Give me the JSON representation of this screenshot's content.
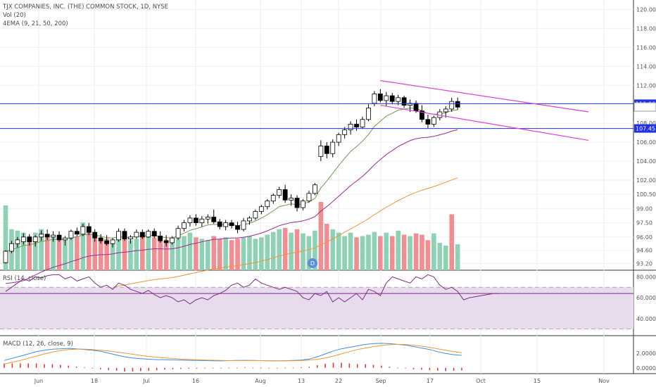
{
  "header": {
    "title": "TJX COMPANIES, INC. (THE) COMMON STOCK, 1D, NYSE",
    "vol_label": "Vol (20)",
    "ema_label": "4EMA (9, 21, 50, 200)"
  },
  "rsi_label": "RSI (14, close)",
  "macd_label": "MACD (12, 26, close, 9)",
  "event_marker": "D",
  "colors": {
    "up_candle": "#ffffff",
    "down_candle": "#000000",
    "vol_up": "#8fd1b5",
    "vol_down": "#ef8f93",
    "ema9": "#6e9a54",
    "ema21": "#9c2b8f",
    "ema50": "#f2952f",
    "hline": "#1e30e8",
    "channel": "#e040d0",
    "rsi": "#7b2d84",
    "macd": "#3a8ee6",
    "signal": "#f2952f",
    "hist": "#e23b3b"
  },
  "chart_data": [
    {
      "type": "candlestick",
      "title": "TJX COMPANIES, INC. (THE) COMMON STOCK, 1D, NYSE",
      "y_ticks": [
        "120.00",
        "118.00",
        "116.00",
        "114.00",
        "112.00",
        "110.06",
        "109.72",
        "108.00",
        "107.45",
        "106.00",
        "104.00",
        "102.00",
        "100.50",
        "99.00",
        "97.50",
        "96.00",
        "94.60",
        "93.20"
      ],
      "x_ticks": [
        "Jun",
        "18",
        "Jul",
        "16",
        "Aug",
        "13",
        "22",
        "Sep",
        "17",
        "Oct",
        "15",
        "Nov"
      ],
      "ylim": [
        92.5,
        121.0
      ],
      "horizontal_lines": [
        110.06,
        107.45
      ],
      "last_price": 109.72,
      "channel": {
        "upper": [
          [
            63,
            112.5
          ],
          [
            98,
            109.2
          ]
        ],
        "lower": [
          [
            63,
            109.9
          ],
          [
            98,
            106.2
          ]
        ]
      },
      "ohlc": [
        [
          93.3,
          94.6,
          93.2,
          94.5
        ],
        [
          94.5,
          95.6,
          94.3,
          95.3
        ],
        [
          95.3,
          96.0,
          94.9,
          95.7
        ],
        [
          95.5,
          96.4,
          95.2,
          96.0
        ],
        [
          96.0,
          96.3,
          95.1,
          95.5
        ],
        [
          95.5,
          96.2,
          95.0,
          96.0
        ],
        [
          96.0,
          96.7,
          95.6,
          96.3
        ],
        [
          96.3,
          96.8,
          95.7,
          96.0
        ],
        [
          96.0,
          96.6,
          95.5,
          96.2
        ],
        [
          96.2,
          96.6,
          95.5,
          95.7
        ],
        [
          95.7,
          96.1,
          95.1,
          95.9
        ],
        [
          95.9,
          96.8,
          95.7,
          96.6
        ],
        [
          96.6,
          97.0,
          96.1,
          96.3
        ],
        [
          96.3,
          97.4,
          96.1,
          97.1
        ],
        [
          97.1,
          97.5,
          96.2,
          96.5
        ],
        [
          96.5,
          96.8,
          95.5,
          95.9
        ],
        [
          95.9,
          96.3,
          95.3,
          95.6
        ],
        [
          95.6,
          96.2,
          95.1,
          95.3
        ],
        [
          95.3,
          95.9,
          94.9,
          95.7
        ],
        [
          95.7,
          96.9,
          95.5,
          96.6
        ],
        [
          96.6,
          96.9,
          95.6,
          95.8
        ],
        [
          95.8,
          96.2,
          95.3,
          96.0
        ],
        [
          96.0,
          96.8,
          95.8,
          96.5
        ],
        [
          96.5,
          96.8,
          95.8,
          96.0
        ],
        [
          96.0,
          96.8,
          95.9,
          96.6
        ],
        [
          96.6,
          96.9,
          95.9,
          96.1
        ],
        [
          96.1,
          96.6,
          95.4,
          95.6
        ],
        [
          95.6,
          96.2,
          95.0,
          95.4
        ],
        [
          95.4,
          96.1,
          95.2,
          95.9
        ],
        [
          95.9,
          97.2,
          95.7,
          96.9
        ],
        [
          96.9,
          97.8,
          96.6,
          97.5
        ],
        [
          97.5,
          98.3,
          97.1,
          98.0
        ],
        [
          98.0,
          98.4,
          97.2,
          97.5
        ],
        [
          97.5,
          98.2,
          97.1,
          97.9
        ],
        [
          97.9,
          98.4,
          97.4,
          98.1
        ],
        [
          98.1,
          98.9,
          97.4,
          97.6
        ],
        [
          97.6,
          97.9,
          96.8,
          97.1
        ],
        [
          97.1,
          97.8,
          96.7,
          97.5
        ],
        [
          97.5,
          97.8,
          96.9,
          97.2
        ],
        [
          97.2,
          97.6,
          96.4,
          96.8
        ],
        [
          96.8,
          98.0,
          96.6,
          97.7
        ],
        [
          97.7,
          98.2,
          97.3,
          98.0
        ],
        [
          98.0,
          98.9,
          97.8,
          98.7
        ],
        [
          98.7,
          99.4,
          98.4,
          99.2
        ],
        [
          99.2,
          100.0,
          98.9,
          99.8
        ],
        [
          99.8,
          100.6,
          99.5,
          100.4
        ],
        [
          100.4,
          101.3,
          100.1,
          101.0
        ],
        [
          101.0,
          101.5,
          99.6,
          99.9
        ],
        [
          99.9,
          100.5,
          99.3,
          100.1
        ],
        [
          100.1,
          100.4,
          98.7,
          99.1
        ],
        [
          99.1,
          100.0,
          98.8,
          99.8
        ],
        [
          99.8,
          100.9,
          99.6,
          100.6
        ],
        [
          100.6,
          101.7,
          100.4,
          101.5
        ],
        [
          104.5,
          106.2,
          104.0,
          105.6
        ],
        [
          105.6,
          106.0,
          104.3,
          104.8
        ],
        [
          104.8,
          106.3,
          104.4,
          106.0
        ],
        [
          106.0,
          107.0,
          105.6,
          106.8
        ],
        [
          106.8,
          107.6,
          106.4,
          107.3
        ],
        [
          107.3,
          108.2,
          106.8,
          107.9
        ],
        [
          107.9,
          108.4,
          107.2,
          107.6
        ],
        [
          107.6,
          108.7,
          107.4,
          108.4
        ],
        [
          108.4,
          110.0,
          108.2,
          109.6
        ],
        [
          110.1,
          111.4,
          109.8,
          111.1
        ],
        [
          111.1,
          111.6,
          110.2,
          110.4
        ],
        [
          110.4,
          111.3,
          109.8,
          110.9
        ],
        [
          110.9,
          111.2,
          110.0,
          110.3
        ],
        [
          110.3,
          111.0,
          109.9,
          110.7
        ],
        [
          110.7,
          110.9,
          109.6,
          109.9
        ],
        [
          109.9,
          110.5,
          109.2,
          110.1
        ],
        [
          110.1,
          110.4,
          109.1,
          109.3
        ],
        [
          109.3,
          109.9,
          108.1,
          108.4
        ],
        [
          108.4,
          108.9,
          107.5,
          107.9
        ],
        [
          107.9,
          108.8,
          107.6,
          108.6
        ],
        [
          108.6,
          109.5,
          108.3,
          109.2
        ],
        [
          109.2,
          109.8,
          108.6,
          109.5
        ],
        [
          109.5,
          110.7,
          109.2,
          110.3
        ],
        [
          110.3,
          110.7,
          109.4,
          109.7
        ]
      ],
      "volume": [
        {
          "v": 0.95,
          "up": true
        },
        {
          "v": 0.6,
          "up": true
        },
        {
          "v": 0.58,
          "up": true
        },
        {
          "v": 0.55,
          "up": true
        },
        {
          "v": 0.5,
          "up": false
        },
        {
          "v": 0.55,
          "up": true
        },
        {
          "v": 0.6,
          "up": true
        },
        {
          "v": 0.52,
          "up": false
        },
        {
          "v": 0.5,
          "up": true
        },
        {
          "v": 0.48,
          "up": false
        },
        {
          "v": 0.46,
          "up": true
        },
        {
          "v": 0.55,
          "up": true
        },
        {
          "v": 0.5,
          "up": false
        },
        {
          "v": 0.7,
          "up": true
        },
        {
          "v": 0.6,
          "up": false
        },
        {
          "v": 0.55,
          "up": false
        },
        {
          "v": 0.48,
          "up": false
        },
        {
          "v": 0.46,
          "up": false
        },
        {
          "v": 0.45,
          "up": true
        },
        {
          "v": 0.52,
          "up": true
        },
        {
          "v": 0.48,
          "up": false
        },
        {
          "v": 0.44,
          "up": true
        },
        {
          "v": 0.46,
          "up": true
        },
        {
          "v": 0.5,
          "up": false
        },
        {
          "v": 0.52,
          "up": true
        },
        {
          "v": 0.48,
          "up": false
        },
        {
          "v": 0.5,
          "up": false
        },
        {
          "v": 0.45,
          "up": false
        },
        {
          "v": 0.42,
          "up": true
        },
        {
          "v": 0.46,
          "up": true
        },
        {
          "v": 0.5,
          "up": true
        },
        {
          "v": 0.55,
          "up": true
        },
        {
          "v": 0.48,
          "up": false
        },
        {
          "v": 0.46,
          "up": true
        },
        {
          "v": 0.44,
          "up": true
        },
        {
          "v": 0.5,
          "up": false
        },
        {
          "v": 0.46,
          "up": false
        },
        {
          "v": 0.48,
          "up": true
        },
        {
          "v": 0.44,
          "up": false
        },
        {
          "v": 0.46,
          "up": false
        },
        {
          "v": 0.48,
          "up": true
        },
        {
          "v": 0.5,
          "up": true
        },
        {
          "v": 0.46,
          "up": true
        },
        {
          "v": 0.48,
          "up": true
        },
        {
          "v": 0.52,
          "up": true
        },
        {
          "v": 0.56,
          "up": true
        },
        {
          "v": 0.6,
          "up": true
        },
        {
          "v": 0.62,
          "up": false
        },
        {
          "v": 0.55,
          "up": true
        },
        {
          "v": 0.6,
          "up": false
        },
        {
          "v": 0.54,
          "up": true
        },
        {
          "v": 0.5,
          "up": true
        },
        {
          "v": 0.58,
          "up": true
        },
        {
          "v": 1.0,
          "up": false
        },
        {
          "v": 0.68,
          "up": false
        },
        {
          "v": 0.6,
          "up": true
        },
        {
          "v": 0.55,
          "up": true
        },
        {
          "v": 0.5,
          "up": true
        },
        {
          "v": 0.55,
          "up": true
        },
        {
          "v": 0.48,
          "up": false
        },
        {
          "v": 0.5,
          "up": true
        },
        {
          "v": 0.52,
          "up": true
        },
        {
          "v": 0.56,
          "up": true
        },
        {
          "v": 0.5,
          "up": false
        },
        {
          "v": 0.55,
          "up": true
        },
        {
          "v": 0.5,
          "up": false
        },
        {
          "v": 0.58,
          "up": true
        },
        {
          "v": 0.52,
          "up": false
        },
        {
          "v": 0.5,
          "up": true
        },
        {
          "v": 0.54,
          "up": false
        },
        {
          "v": 0.52,
          "up": false
        },
        {
          "v": 0.44,
          "up": false
        },
        {
          "v": 0.54,
          "up": true
        },
        {
          "v": 0.4,
          "up": true
        },
        {
          "v": 0.36,
          "up": true
        },
        {
          "v": 0.82,
          "up": false
        },
        {
          "v": 0.38,
          "up": true
        }
      ]
    },
    {
      "type": "line",
      "title": "RSI (14, close)",
      "y_ticks": [
        "80.0000",
        "60.0000",
        "40.0000"
      ],
      "ylim": [
        25,
        85
      ],
      "band": [
        70,
        30
      ],
      "last_value": 64,
      "values": [
        66,
        70,
        74,
        78,
        76,
        80,
        79,
        81,
        82,
        82,
        78,
        80,
        76,
        78,
        80,
        74,
        70,
        72,
        68,
        74,
        72,
        68,
        66,
        64,
        67,
        63,
        60,
        62,
        60,
        56,
        58,
        54,
        58,
        60,
        58,
        62,
        64,
        67,
        72,
        74,
        70,
        72,
        78,
        74,
        72,
        70,
        68,
        70,
        68,
        66,
        60,
        58,
        64,
        62,
        66,
        56,
        60,
        56,
        60,
        64,
        58,
        68,
        66,
        62,
        74,
        80,
        78,
        76,
        74,
        80,
        78,
        82,
        80,
        72,
        68,
        70,
        66,
        58,
        60,
        61,
        62,
        63,
        64,
        64
      ]
    },
    {
      "type": "line",
      "title": "MACD (12, 26, close, 9)",
      "y_ticks": [
        "2.0000",
        "0.0000"
      ],
      "ylim": [
        -0.6,
        4.2
      ],
      "series": [
        {
          "name": "MACD",
          "values": [
            1.0,
            1.3,
            1.6,
            1.9,
            2.2,
            2.4,
            2.55,
            2.6,
            2.65,
            2.6,
            2.5,
            2.4,
            2.25,
            2.0,
            1.75,
            1.5,
            1.35,
            1.25,
            1.18,
            1.12,
            1.1,
            1.08,
            1.05,
            1.02,
            1.0,
            0.98,
            0.96,
            0.95,
            0.98,
            1.0,
            1.02,
            1.0,
            0.98,
            0.96,
            0.95,
            0.97,
            1.0,
            1.05,
            1.2,
            1.5,
            1.9,
            2.3,
            2.6,
            2.8,
            3.0,
            3.2,
            3.3,
            3.35,
            3.3,
            3.2,
            3.1,
            2.9,
            2.7,
            2.5,
            2.2,
            1.95,
            1.8,
            1.7
          ]
        },
        {
          "name": "Signal",
          "values": [
            0.5,
            0.75,
            1.0,
            1.3,
            1.6,
            1.9,
            2.15,
            2.35,
            2.5,
            2.55,
            2.55,
            2.5,
            2.4,
            2.3,
            2.15,
            2.0,
            1.85,
            1.7,
            1.55,
            1.45,
            1.35,
            1.28,
            1.2,
            1.15,
            1.1,
            1.06,
            1.03,
            1.0,
            0.98,
            0.98,
            0.98,
            0.98,
            0.98,
            0.97,
            0.96,
            0.96,
            0.97,
            0.99,
            1.05,
            1.15,
            1.35,
            1.6,
            1.9,
            2.2,
            2.5,
            2.7,
            2.9,
            3.05,
            3.15,
            3.2,
            3.18,
            3.1,
            2.95,
            2.8,
            2.6,
            2.4,
            2.2,
            2.05
          ]
        }
      ],
      "histogram": [
        0.6,
        0.6,
        0.6,
        0.6,
        0.6,
        0.5,
        0.5,
        0.4,
        0.3,
        0.15,
        0.05,
        -0.1,
        -0.2,
        -0.3,
        -0.4,
        -0.5,
        -0.5,
        -0.45,
        -0.4,
        -0.35,
        -0.25,
        -0.2,
        -0.15,
        -0.12,
        -0.1,
        -0.08,
        -0.07,
        -0.05,
        0.0,
        0.02,
        0.04,
        0.02,
        0.0,
        -0.01,
        -0.01,
        0.01,
        0.03,
        0.06,
        0.15,
        0.35,
        0.55,
        0.7,
        0.7,
        0.6,
        0.5,
        0.5,
        0.4,
        0.3,
        0.15,
        0.0,
        -0.08,
        -0.2,
        -0.25,
        -0.3,
        -0.4,
        -0.45,
        -0.4,
        -0.35
      ]
    }
  ]
}
